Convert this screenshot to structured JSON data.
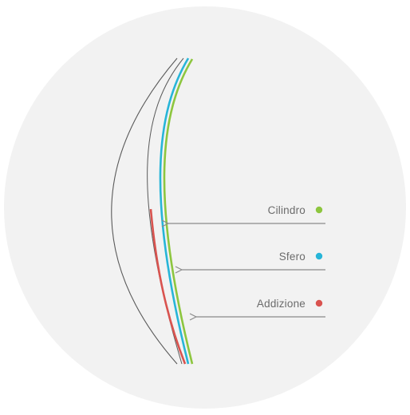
{
  "colors": {
    "background": "#ffffff",
    "circle": "#f2f2f2",
    "lens_outline": "#5a5a5a",
    "arrow": "#8a8a8a",
    "cilindro": "#8dc63f",
    "sfero": "#27b5d8",
    "addizione": "#d9534f"
  },
  "legend": [
    {
      "id": "cilindro",
      "label": "Cilindro",
      "color": "#8dc63f"
    },
    {
      "id": "sfero",
      "label": "Sfero",
      "color": "#27b5d8"
    },
    {
      "id": "addizione",
      "label": "Addizione",
      "color": "#d9534f"
    }
  ]
}
